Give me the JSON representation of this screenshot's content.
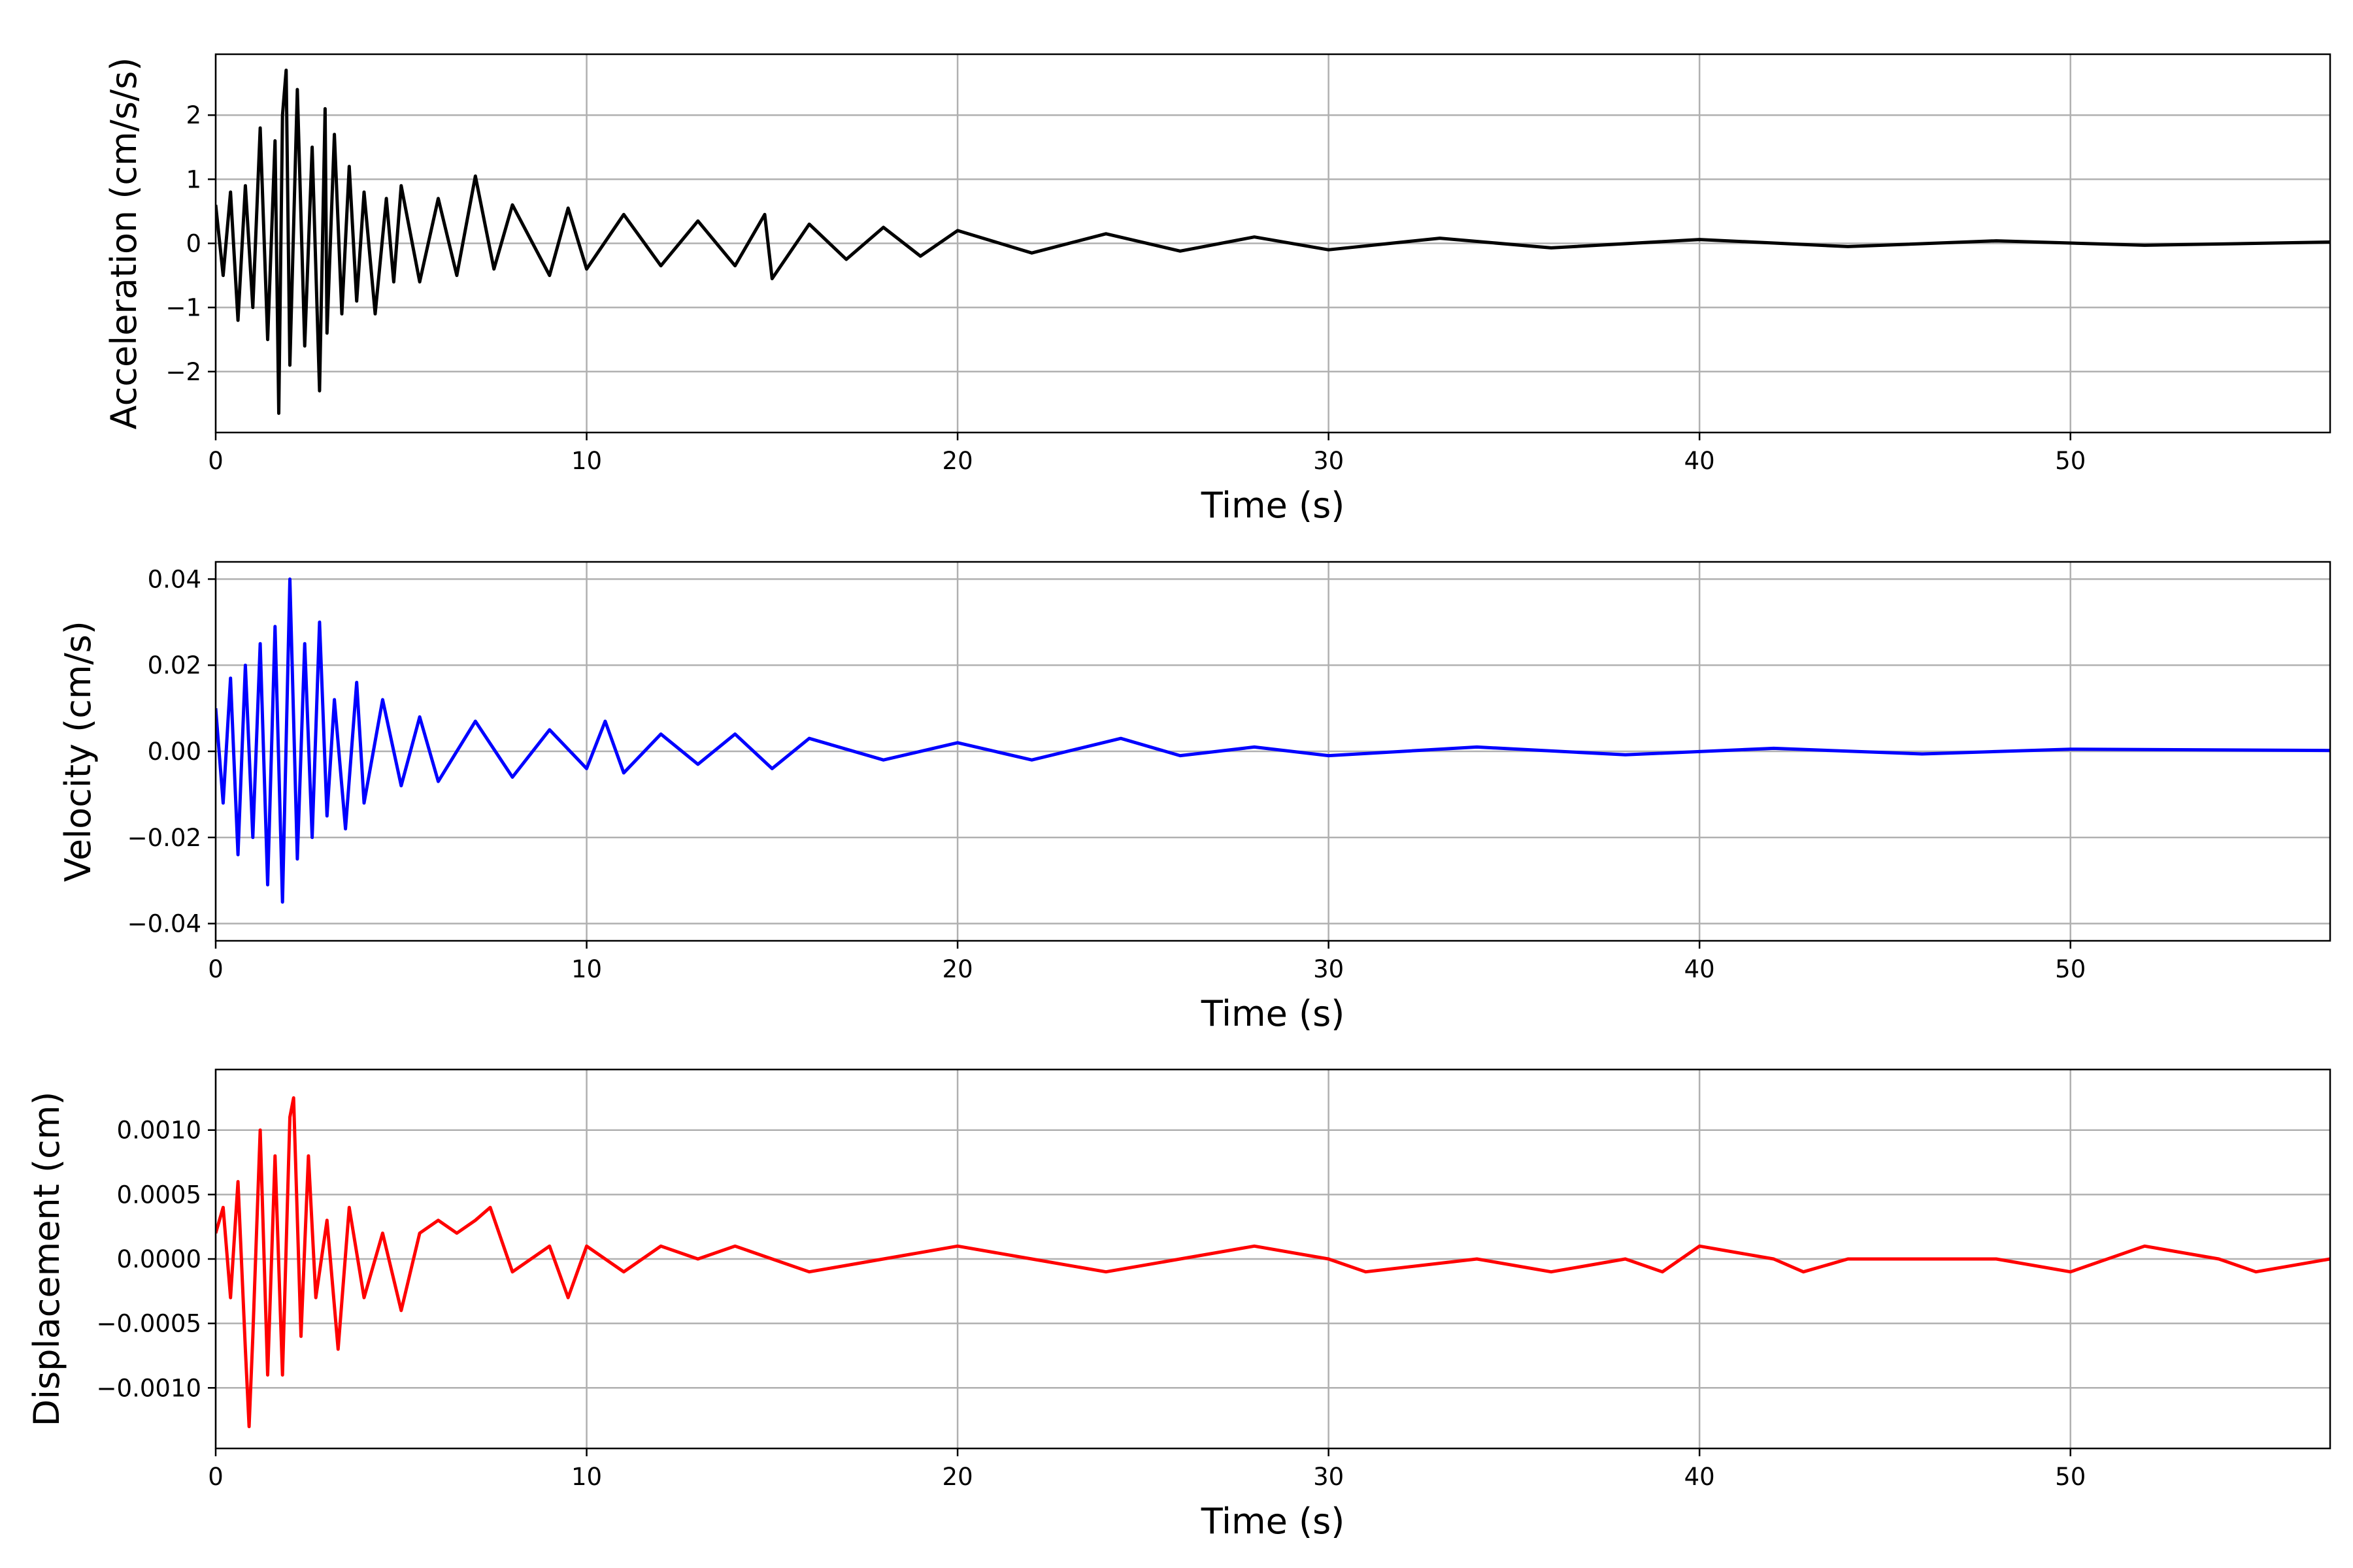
{
  "chart_data": [
    {
      "type": "line",
      "title": "",
      "xlabel": "Time (s)",
      "ylabel": "Acceleration (cm/s/s)",
      "xlim": [
        0,
        57
      ],
      "ylim": [
        -2.95,
        2.95
      ],
      "xticks": [
        0,
        10,
        20,
        30,
        40,
        50
      ],
      "yticks": [
        -2,
        -1,
        0,
        1,
        2
      ],
      "ytick_labels": [
        "−2",
        "−1",
        "0",
        "1",
        "2"
      ],
      "grid": true,
      "color": "#000000",
      "series": [
        {
          "x": [
            0,
            0.2,
            0.4,
            0.6,
            0.8,
            1.0,
            1.2,
            1.4,
            1.6,
            1.7,
            1.8,
            1.9,
            2.0,
            2.2,
            2.4,
            2.6,
            2.8,
            2.95,
            3.0,
            3.2,
            3.4,
            3.6,
            3.8,
            4.0,
            4.3,
            4.6,
            4.8,
            5.0,
            5.5,
            6.0,
            6.5,
            7.0,
            7.5,
            8.0,
            9.0,
            9.5,
            10.0,
            11.0,
            12.0,
            13.0,
            14.0,
            14.8,
            15.0,
            16.0,
            17.0,
            18.0,
            19.0,
            20.0,
            22.0,
            24.0,
            26.0,
            28.0,
            30.0,
            33.0,
            36.0,
            40.0,
            44.0,
            48.0,
            52.0,
            57.0
          ],
          "y": [
            0.6,
            -0.5,
            0.8,
            -1.2,
            0.9,
            -1.0,
            1.8,
            -1.5,
            1.6,
            -2.65,
            2.0,
            2.7,
            -1.9,
            2.4,
            -1.6,
            1.5,
            -2.3,
            2.1,
            -1.4,
            1.7,
            -1.1,
            1.2,
            -0.9,
            0.8,
            -1.1,
            0.7,
            -0.6,
            0.9,
            -0.6,
            0.7,
            -0.5,
            1.05,
            -0.4,
            0.6,
            -0.5,
            0.55,
            -0.4,
            0.45,
            -0.35,
            0.35,
            -0.35,
            0.45,
            -0.55,
            0.3,
            -0.25,
            0.25,
            -0.2,
            0.2,
            -0.15,
            0.15,
            -0.12,
            0.1,
            -0.1,
            0.08,
            -0.07,
            0.06,
            -0.05,
            0.04,
            -0.03,
            0.02
          ]
        }
      ]
    },
    {
      "type": "line",
      "title": "",
      "xlabel": "Time (s)",
      "ylabel": "Velocity (cm/s)",
      "xlim": [
        0,
        57
      ],
      "ylim": [
        -0.044,
        0.044
      ],
      "xticks": [
        0,
        10,
        20,
        30,
        40,
        50
      ],
      "yticks": [
        -0.04,
        -0.02,
        0.0,
        0.02,
        0.04
      ],
      "ytick_labels": [
        "−0.04",
        "−0.02",
        "0.00",
        "0.02",
        "0.04"
      ],
      "grid": true,
      "color": "#0000ff",
      "series": [
        {
          "x": [
            0,
            0.2,
            0.4,
            0.6,
            0.8,
            1.0,
            1.2,
            1.4,
            1.6,
            1.8,
            2.0,
            2.2,
            2.4,
            2.6,
            2.8,
            3.0,
            3.2,
            3.5,
            3.8,
            4.0,
            4.5,
            5.0,
            5.5,
            6.0,
            7.0,
            8.0,
            9.0,
            10.0,
            10.5,
            11.0,
            12.0,
            13.0,
            14.0,
            15.0,
            16.0,
            18.0,
            20.0,
            22.0,
            24.4,
            26.0,
            28.0,
            30.0,
            34.0,
            38.0,
            42.0,
            46.0,
            50.0,
            57.0
          ],
          "y": [
            0.01,
            -0.012,
            0.017,
            -0.024,
            0.02,
            -0.02,
            0.025,
            -0.031,
            0.029,
            -0.035,
            0.04,
            -0.025,
            0.025,
            -0.02,
            0.03,
            -0.015,
            0.012,
            -0.018,
            0.016,
            -0.012,
            0.012,
            -0.008,
            0.008,
            -0.007,
            0.007,
            -0.006,
            0.005,
            -0.004,
            0.007,
            -0.005,
            0.004,
            -0.003,
            0.004,
            -0.004,
            0.003,
            -0.002,
            0.002,
            -0.002,
            0.003,
            -0.001,
            0.001,
            -0.001,
            0.001,
            -0.0008,
            0.0007,
            -0.0006,
            0.0005,
            0.0002
          ]
        }
      ]
    },
    {
      "type": "line",
      "title": "",
      "xlabel": "Time (s)",
      "ylabel": "Displacement (cm)",
      "xlim": [
        0,
        57
      ],
      "ylim": [
        -0.00147,
        0.00147
      ],
      "xticks": [
        0,
        10,
        20,
        30,
        40,
        50
      ],
      "yticks": [
        -0.001,
        -0.0005,
        0.0,
        0.0005,
        0.001
      ],
      "ytick_labels": [
        "−0.0010",
        "−0.0005",
        "0.0000",
        "0.0005",
        "0.0010"
      ],
      "grid": true,
      "color": "#ff0000",
      "series": [
        {
          "x": [
            0,
            0.2,
            0.4,
            0.6,
            0.8,
            0.9,
            1.0,
            1.2,
            1.4,
            1.6,
            1.8,
            2.0,
            2.1,
            2.3,
            2.5,
            2.7,
            3.0,
            3.3,
            3.6,
            4.0,
            4.5,
            5.0,
            5.5,
            6.0,
            6.5,
            7.0,
            7.4,
            8.0,
            9.0,
            9.5,
            10.0,
            11.0,
            12.0,
            13.0,
            14.0,
            15.0,
            16.0,
            18.0,
            20.0,
            22.0,
            24.0,
            26.0,
            28.0,
            30.0,
            31.0,
            34.0,
            36.0,
            38.0,
            39.0,
            40.0,
            42.0,
            42.8,
            44.0,
            46.0,
            48.0,
            50.0,
            52.0,
            54.0,
            55.0,
            57.0
          ],
          "y": [
            0.0002,
            0.0004,
            -0.0003,
            0.0006,
            -0.0007,
            -0.0013,
            -0.0006,
            0.001,
            -0.0009,
            0.0008,
            -0.0009,
            0.0011,
            0.00125,
            -0.0006,
            0.0008,
            -0.0003,
            0.0003,
            -0.0007,
            0.0004,
            -0.0003,
            0.0002,
            -0.0004,
            0.0002,
            0.0003,
            0.0002,
            0.0003,
            0.0004,
            -0.0001,
            0.0001,
            -0.0003,
            0.0001,
            -0.0001,
            0.0001,
            0.0,
            0.0001,
            0.0,
            -0.0001,
            0.0,
            0.0001,
            0.0,
            -0.0001,
            0.0,
            0.0001,
            0.0,
            -0.0001,
            0.0,
            -0.0001,
            0.0,
            -0.0001,
            0.0001,
            0.0,
            -0.0001,
            0.0,
            0.0,
            0.0,
            -0.0001,
            0.0001,
            0.0,
            -0.0001,
            0.0
          ]
        }
      ]
    }
  ]
}
